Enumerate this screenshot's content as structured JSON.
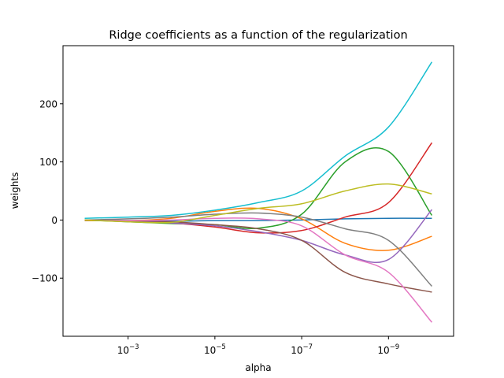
{
  "chart_data": {
    "type": "line",
    "title": "Ridge coefficients as a function of the regularization",
    "xlabel": "alpha",
    "ylabel": "weights",
    "xscale": "log",
    "xaxis_reversed": true,
    "xlim": [
      0.0316,
      3.16e-11
    ],
    "ylim": [
      -200,
      300
    ],
    "grid": false,
    "x_ticks": [
      {
        "value": 0.001,
        "base": "10",
        "exp": "−3"
      },
      {
        "value": 1e-05,
        "base": "10",
        "exp": "−5"
      },
      {
        "value": 1e-07,
        "base": "10",
        "exp": "−7"
      },
      {
        "value": 1e-09,
        "base": "10",
        "exp": "−9"
      }
    ],
    "y_ticks": [
      {
        "value": -100,
        "label": "−100"
      },
      {
        "value": 0,
        "label": "0"
      },
      {
        "value": 100,
        "label": "100"
      },
      {
        "value": 200,
        "label": "200"
      }
    ],
    "x": [
      0.01,
      0.001,
      0.0001,
      1e-05,
      1e-06,
      1e-07,
      1e-08,
      1e-09,
      1e-10
    ],
    "series": [
      {
        "color": "#1f77b4",
        "values": [
          -1,
          -1,
          -2,
          -1,
          -1,
          0,
          2,
          3,
          3
        ]
      },
      {
        "color": "#ff7f0e",
        "values": [
          -1,
          -1,
          3,
          15,
          20,
          2,
          -40,
          -52,
          -28
        ]
      },
      {
        "color": "#2ca02c",
        "values": [
          0,
          -3,
          -6,
          -8,
          -14,
          10,
          100,
          118,
          8
        ]
      },
      {
        "color": "#d62728",
        "values": [
          0,
          -2,
          -5,
          -12,
          -22,
          -18,
          5,
          30,
          133
        ]
      },
      {
        "color": "#9467bd",
        "values": [
          0,
          -2,
          -5,
          -10,
          -20,
          -35,
          -60,
          -68,
          18
        ]
      },
      {
        "color": "#8c564b",
        "values": [
          0,
          -1,
          -3,
          -8,
          -15,
          -35,
          -90,
          -110,
          -124
        ]
      },
      {
        "color": "#e377c2",
        "values": [
          0,
          -1,
          0,
          3,
          2,
          -10,
          -60,
          -90,
          -176
        ]
      },
      {
        "color": "#7f7f7f",
        "values": [
          0,
          2,
          5,
          10,
          12,
          5,
          -15,
          -35,
          -114
        ]
      },
      {
        "color": "#bcbd22",
        "values": [
          0,
          -3,
          -4,
          8,
          20,
          28,
          50,
          62,
          45
        ]
      },
      {
        "color": "#17becf",
        "values": [
          3,
          5,
          8,
          17,
          30,
          50,
          110,
          160,
          272
        ]
      }
    ]
  }
}
